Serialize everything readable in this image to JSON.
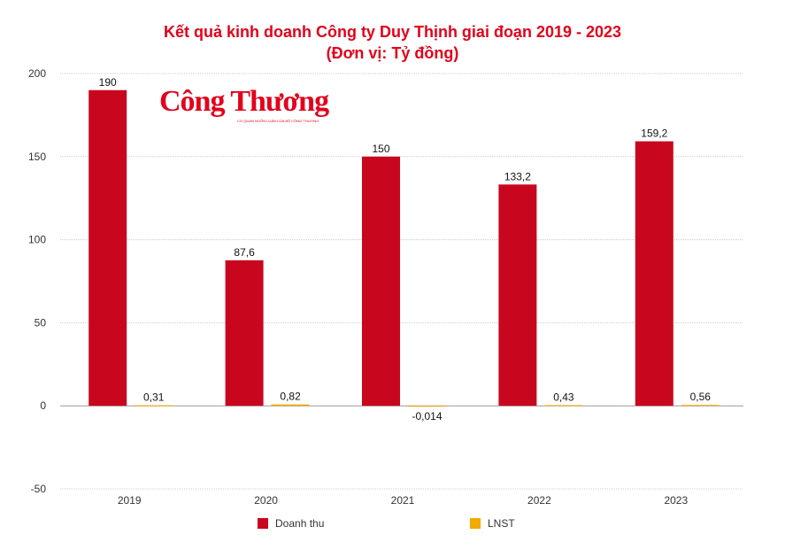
{
  "chart_data": {
    "type": "bar",
    "title": "Kết quả kinh doanh Công ty Duy Thịnh giai đoạn 2019 - 2023",
    "subtitle": "(Đơn vị: Tỷ đồng)",
    "categories": [
      "2019",
      "2020",
      "2021",
      "2022",
      "2023"
    ],
    "series": [
      {
        "name": "Doanh thu",
        "color": "#c8071e",
        "values": [
          190,
          87.6,
          150,
          133.2,
          159.2
        ],
        "labels": [
          "190",
          "87,6",
          "150",
          "133,2",
          "159,2"
        ]
      },
      {
        "name": "LNST",
        "color": "#f2a900",
        "values": [
          0.31,
          0.82,
          -0.014,
          0.43,
          0.56
        ],
        "labels": [
          "0,31",
          "0,82",
          "-0,014",
          "0,43",
          "0,56"
        ]
      }
    ],
    "ylim": [
      -50,
      200
    ],
    "yticks": [
      -50,
      0,
      50,
      100,
      150,
      200
    ],
    "grid": true,
    "legend": "bottom"
  },
  "logo": {
    "name": "Công Thương",
    "tagline": "CƠ QUAN NGÔN LUẬN CỦA BỘ CÔNG THƯƠNG"
  }
}
